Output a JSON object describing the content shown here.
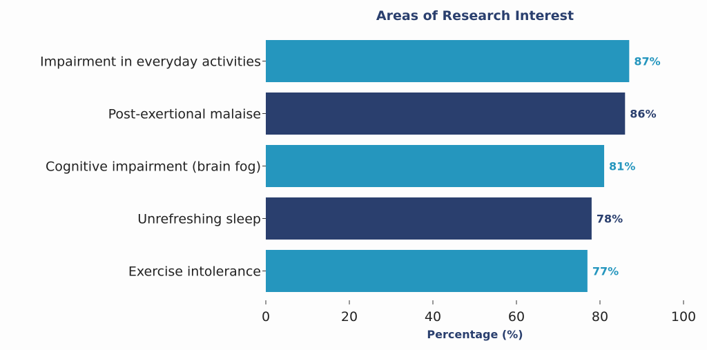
{
  "chart_data": {
    "type": "bar",
    "orientation": "horizontal",
    "title": "Areas of Research Interest",
    "xlabel": "Percentage (%)",
    "ylabel": "",
    "xlim": [
      0,
      100
    ],
    "xticks": [
      0,
      20,
      40,
      60,
      80,
      100
    ],
    "categories": [
      "Impairment in everyday activities",
      "Post-exertional malaise",
      "Cognitive impairment (brain fog)",
      "Unrefreshing sleep",
      "Exercise intolerance"
    ],
    "values": [
      87,
      86,
      81,
      78,
      77
    ],
    "data_labels": [
      "87%",
      "86%",
      "81%",
      "78%",
      "77%"
    ],
    "colors": [
      "#2596be",
      "#2a3f6e",
      "#2596be",
      "#2a3f6e",
      "#2596be"
    ],
    "grid": false
  }
}
